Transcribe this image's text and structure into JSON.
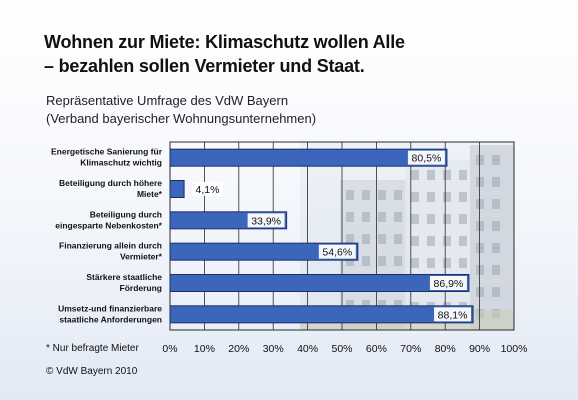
{
  "title_lines": [
    "Wohnen zur Miete: Klimaschutz wollen Alle",
    "– bezahlen sollen Vermieter und Staat."
  ],
  "subtitle_lines": [
    "Repräsentative Umfrage des VdW Bayern",
    "(Verband bayerischer Wohnungsunternehmen)"
  ],
  "footnote": "* Nur befragte Mieter",
  "copyright": "© VdW Bayern 2010",
  "colors": {
    "bar_fill": "#3b66bc",
    "bar_stroke": "#1a2f66",
    "label_box": "#ffffff"
  },
  "chart_data": {
    "type": "bar",
    "orientation": "horizontal",
    "categories": [
      [
        "Energetische Sanierung für",
        "Klimaschutz wichtig"
      ],
      [
        "Beteiligung durch höhere",
        "Miete*"
      ],
      [
        "Beteiligung durch",
        "eingesparte Nebenkosten*"
      ],
      [
        "Finanzierung allein durch",
        "Vermieter*"
      ],
      [
        "Stärkere staatliche",
        "Förderung"
      ],
      [
        "Umsetz-und finanzierbare",
        "staatliche Anforderungen"
      ]
    ],
    "values": [
      80.5,
      4.1,
      33.9,
      54.6,
      86.9,
      88.1
    ],
    "value_labels": [
      "80,5%",
      "4,1%",
      "33,9%",
      "54,6%",
      "86,9%",
      "88,1%"
    ],
    "xlim": [
      0,
      100
    ],
    "x_ticks": [
      0,
      10,
      20,
      30,
      40,
      50,
      60,
      70,
      80,
      90,
      100
    ],
    "x_tick_labels": [
      "0%",
      "10%",
      "20%",
      "30%",
      "40%",
      "50%",
      "60%",
      "70%",
      "80%",
      "90%",
      "100%"
    ],
    "grid": true
  }
}
